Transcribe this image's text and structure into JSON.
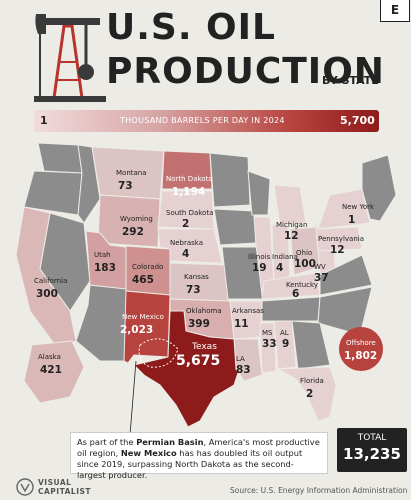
{
  "header": {
    "title_line1": "U.S. OIL",
    "title_line2": "PRODUCTION",
    "title_suffix": "BY STATE",
    "brand_mark": "E"
  },
  "legend": {
    "min_label": "1",
    "scale_label": "THOUSAND BARRELS PER DAY IN 2024",
    "max_label": "5,700",
    "color_low": "#f1dcdd",
    "color_high": "#8e1b1b"
  },
  "states": [
    {
      "name": "Montana",
      "value": "73"
    },
    {
      "name": "North Dakota",
      "value": "1,194"
    },
    {
      "name": "South Dakota",
      "value": "2"
    },
    {
      "name": "Wyoming",
      "value": "292"
    },
    {
      "name": "Nebraska",
      "value": "4"
    },
    {
      "name": "Utah",
      "value": "183"
    },
    {
      "name": "Colorado",
      "value": "465"
    },
    {
      "name": "Kansas",
      "value": "73"
    },
    {
      "name": "California",
      "value": "300"
    },
    {
      "name": "New Mexico",
      "value": "2,023"
    },
    {
      "name": "Oklahoma",
      "value": "399"
    },
    {
      "name": "Texas",
      "value": "5,675"
    },
    {
      "name": "Arkansas",
      "value": "11"
    },
    {
      "name": "MS",
      "value": "33"
    },
    {
      "name": "AL",
      "value": "9"
    },
    {
      "name": "LA",
      "value": "83"
    },
    {
      "name": "Florida",
      "value": "2"
    },
    {
      "name": "Illinois",
      "value": "19"
    },
    {
      "name": "Indiana",
      "value": "4"
    },
    {
      "name": "Michigan",
      "value": "12"
    },
    {
      "name": "Ohio",
      "value": "100"
    },
    {
      "name": "Kentucky",
      "value": "6"
    },
    {
      "name": "WV",
      "value": "37"
    },
    {
      "name": "Pennsylvania",
      "value": "12"
    },
    {
      "name": "New York",
      "value": "1"
    },
    {
      "name": "Alaska",
      "value": "421"
    },
    {
      "name": "Offshore",
      "value": "1,802"
    }
  ],
  "callout": {
    "text_a": "As part of the ",
    "bold_a": "Permian Basin",
    "text_b": ", America's most productive oil region, ",
    "bold_b": "New Mexico",
    "text_c": " has has doubled its oil output since 2019, surpassing North Dakota as the second-largest producer."
  },
  "total": {
    "label": "TOTAL",
    "value": "13,235"
  },
  "footer": {
    "brand_line1": "VISUAL",
    "brand_line2": "CAPITALIST",
    "source": "Source: U.S. Energy Information Administration"
  }
}
